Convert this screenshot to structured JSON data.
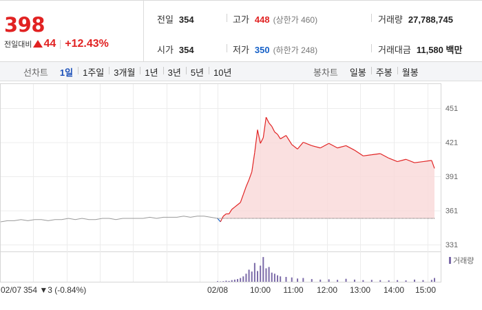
{
  "quote": {
    "price": "398",
    "change_label": "전일대비",
    "change": "44",
    "change_pct": "+12.43%"
  },
  "stats": {
    "prev_label": "전일",
    "prev": "354",
    "high_label": "고가",
    "high": "448",
    "upper_limit": "(상한가 460)",
    "volume_label": "거래량",
    "volume": "27,788,745",
    "open_label": "시가",
    "open": "354",
    "low_label": "저가",
    "low": "350",
    "lower_limit": "(하한가 248)",
    "amount_label": "거래대금",
    "amount": "11,580 백만"
  },
  "tabs": {
    "line_title": "선차트",
    "line_items": [
      "1일",
      "1주일",
      "3개월",
      "1년",
      "3년",
      "5년",
      "10년"
    ],
    "line_active": 0,
    "candle_title": "봉차트",
    "candle_items": [
      "일봉",
      "주봉",
      "월봉"
    ]
  },
  "colors": {
    "up": "#e12222",
    "down": "#1560c7",
    "volume": "#7b6aa8",
    "prev_day_line": "#999999"
  },
  "chart_data": {
    "type": "line",
    "ylim": [
      331,
      451
    ],
    "yticks": [
      451,
      421,
      391,
      361,
      331
    ],
    "prev_close": 354,
    "x_labels": [
      "02/07",
      "02/08",
      "10:00",
      "11:00",
      "12:00",
      "13:00",
      "14:00",
      "15:00"
    ],
    "prev_day_caption": "354 ▼3 (-0.84%)",
    "volume_legend": "거래량",
    "series": [
      {
        "session": "02/07",
        "values": [
          351,
          352,
          352,
          353,
          352,
          353,
          353,
          352,
          353,
          353,
          354,
          353,
          354,
          353,
          353,
          354,
          354,
          353,
          354,
          354,
          354,
          354,
          355,
          354,
          355,
          355,
          355,
          356,
          355,
          356,
          356,
          355,
          354
        ]
      },
      {
        "session": "02/08",
        "times": [
          "09:00",
          "09:05",
          "09:10",
          "09:15",
          "09:20",
          "09:25",
          "09:30",
          "09:35",
          "09:40",
          "09:45",
          "09:50",
          "09:55",
          "10:00",
          "10:05",
          "10:10",
          "10:15",
          "10:20",
          "10:25",
          "10:30",
          "10:35",
          "10:40",
          "10:45",
          "10:50",
          "11:00",
          "11:10",
          "11:20",
          "11:30",
          "11:45",
          "12:00",
          "12:15",
          "12:30",
          "12:45",
          "13:00",
          "13:15",
          "13:30",
          "13:45",
          "14:00",
          "14:15",
          "14:30",
          "14:45",
          "15:00",
          "15:15",
          "15:20"
        ],
        "values": [
          354,
          351,
          356,
          358,
          358,
          362,
          364,
          366,
          368,
          375,
          382,
          388,
          395,
          412,
          432,
          420,
          425,
          443,
          438,
          435,
          430,
          428,
          424,
          427,
          419,
          415,
          421,
          418,
          416,
          420,
          416,
          418,
          414,
          409,
          410,
          411,
          407,
          404,
          406,
          403,
          404,
          405,
          398
        ]
      }
    ],
    "volume": {
      "max": 100,
      "values": [
        2,
        1,
        2,
        4,
        3,
        6,
        8,
        10,
        14,
        20,
        30,
        45,
        38,
        70,
        40,
        60,
        92,
        50,
        55,
        34,
        30,
        24,
        20,
        18,
        16,
        12,
        14,
        10,
        8,
        9,
        7,
        11,
        8,
        6,
        7,
        6,
        5,
        6,
        5,
        8,
        6,
        7,
        14
      ]
    }
  }
}
